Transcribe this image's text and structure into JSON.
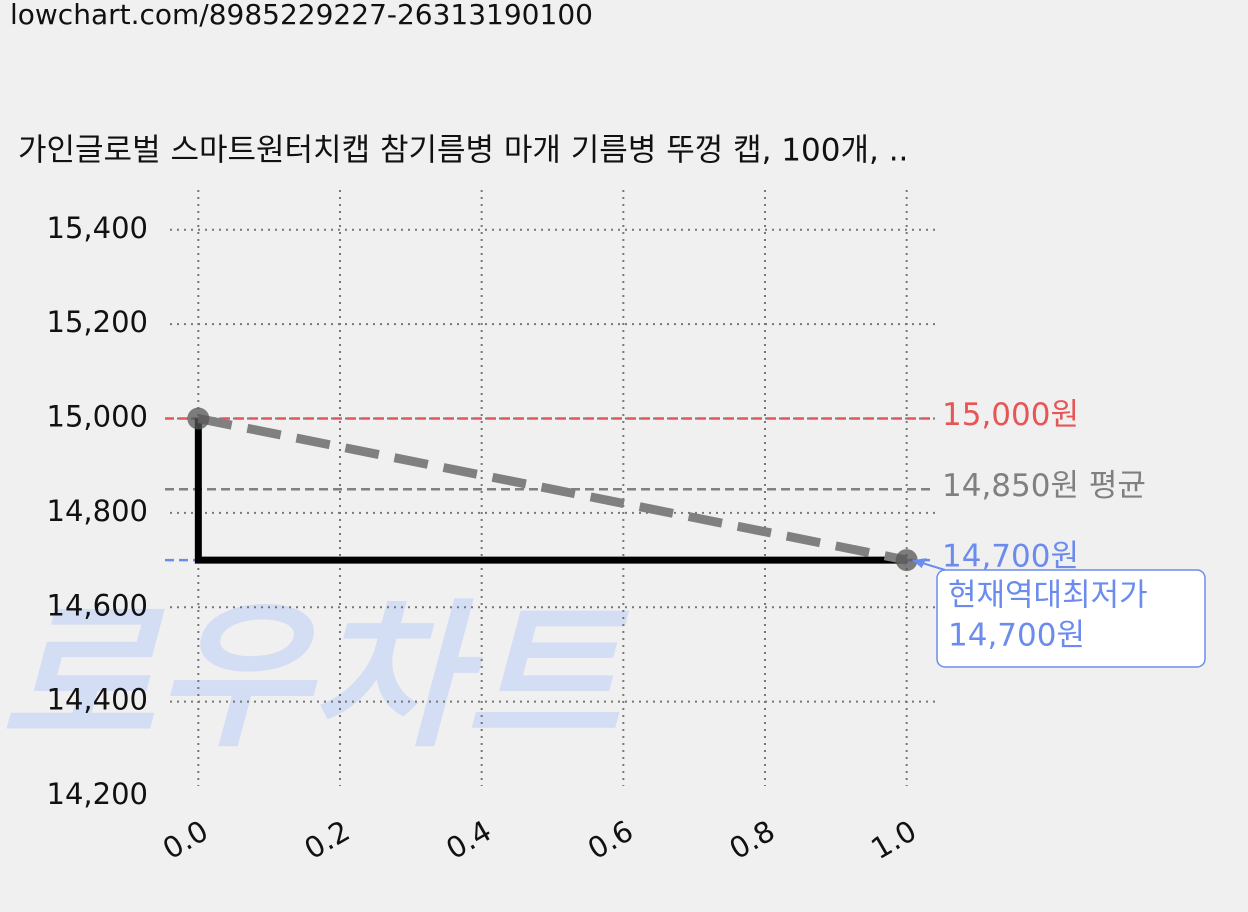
{
  "url": "lowchart.com/8985229227-26313190100",
  "chart_data": {
    "type": "line",
    "title": "가인글로벌 스마트원터치캡 참기름병 마개 기름병 뚜껑 캡, 100개, ..",
    "watermark": "로우차트",
    "series": [
      {
        "color": "#808080",
        "style": "dashed",
        "marker": true,
        "x": [
          0,
          1
        ],
        "values": [
          15000,
          14700
        ]
      },
      {
        "color": "#000000",
        "style": "solid",
        "marker": false,
        "x": [
          0,
          0,
          1
        ],
        "values": [
          15000,
          14700,
          14700
        ]
      }
    ],
    "xlim": [
      -0.04,
      1.04
    ],
    "ylim": [
      14200,
      15480
    ],
    "xticks": [
      {
        "value": 0,
        "label": "0.0"
      },
      {
        "value": 0.2,
        "label": "0.2"
      },
      {
        "value": 0.4,
        "label": "0.4"
      },
      {
        "value": 0.6,
        "label": "0.6"
      },
      {
        "value": 0.8,
        "label": "0.8"
      },
      {
        "value": 1,
        "label": "1.0"
      }
    ],
    "yticks": [
      {
        "value": 14200,
        "label": "14,200"
      },
      {
        "value": 14400,
        "label": "14,400"
      },
      {
        "value": 14600,
        "label": "14,600"
      },
      {
        "value": 14800,
        "label": "14,800"
      },
      {
        "value": 15000,
        "label": "15,000"
      },
      {
        "value": 15200,
        "label": "15,200"
      },
      {
        "value": 15400,
        "label": "15,400"
      }
    ],
    "grid": true,
    "reference_lines": [
      {
        "value": 15000,
        "label": "15,000원",
        "color": "#e85555"
      },
      {
        "value": 14850,
        "label": "14,850원 평균",
        "color": "#808080"
      },
      {
        "value": 14700,
        "label": "14,700원",
        "color": "#6b8cee"
      }
    ],
    "annotation": {
      "lines": [
        "현재역대최저가",
        "14,700원"
      ],
      "color": "#6b8cee",
      "x": 1,
      "value": 14700
    }
  }
}
